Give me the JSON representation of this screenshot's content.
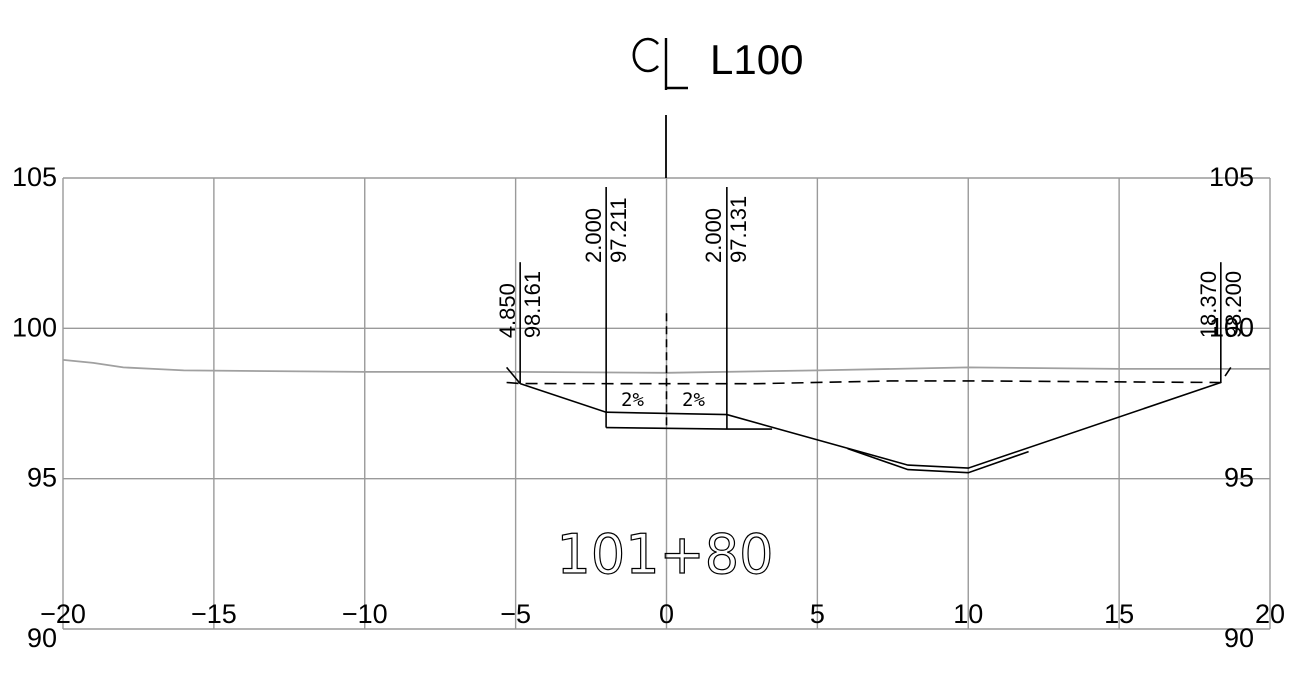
{
  "drawing": {
    "centerline_label": "L100",
    "station_label": "101+80",
    "x_axis": {
      "min": -20,
      "max": 20,
      "ticks": [
        -20,
        -15,
        -10,
        -5,
        0,
        5,
        10,
        15,
        20
      ]
    },
    "y_axis": {
      "min": 90,
      "max": 105,
      "ticks": [
        90,
        95,
        100,
        105
      ],
      "left_labels": [
        "90",
        "95",
        "100",
        "105"
      ],
      "right_labels": [
        "90",
        "95",
        "100",
        "105"
      ]
    },
    "x_tick_labels": [
      "−20",
      "−15",
      "−10",
      "−5",
      "0",
      "5",
      "10",
      "15",
      "20"
    ],
    "offset_annotations": [
      {
        "offset_label": "4.850",
        "elevation_label": "98.161",
        "offset": -4.85,
        "elevation": 98.161
      },
      {
        "offset_label": "2.000",
        "elevation_label": "97.211",
        "offset": -2.0,
        "elevation": 97.211
      },
      {
        "offset_label": "2.000",
        "elevation_label": "97.131",
        "offset": 2.0,
        "elevation": 97.131
      },
      {
        "offset_label": "18.370",
        "elevation_label": "98.200",
        "offset": 18.37,
        "elevation": 98.2
      }
    ],
    "slope_labels": [
      "2%",
      "2%"
    ],
    "existing_ground": [
      [
        -20,
        98.95
      ],
      [
        -19,
        98.85
      ],
      [
        -18,
        98.7
      ],
      [
        -17,
        98.65
      ],
      [
        -16,
        98.6
      ],
      [
        -10,
        98.55
      ],
      [
        -5,
        98.55
      ],
      [
        0,
        98.52
      ],
      [
        5,
        98.6
      ],
      [
        10,
        98.7
      ],
      [
        15,
        98.65
      ],
      [
        20,
        98.65
      ]
    ],
    "proposed_profile": [
      [
        -5.3,
        98.2
      ],
      [
        -4.85,
        98.161
      ],
      [
        3.0,
        98.16
      ],
      [
        7.5,
        98.25
      ],
      [
        10,
        98.25
      ],
      [
        18.37,
        98.2
      ],
      [
        18.7,
        98.7
      ]
    ],
    "subgrade_surface": [
      [
        -4.85,
        98.161
      ],
      [
        -2.0,
        97.211
      ],
      [
        2.0,
        97.131
      ],
      [
        8.0,
        95.45
      ],
      [
        10.0,
        95.35
      ],
      [
        18.37,
        98.2
      ]
    ],
    "pavement_bottom": [
      [
        -2.0,
        96.7
      ],
      [
        2.0,
        96.65
      ],
      [
        3.5,
        96.65
      ]
    ],
    "ditch_liner": [
      [
        6.0,
        96.0
      ],
      [
        8.0,
        95.3
      ],
      [
        10.0,
        95.2
      ],
      [
        12.0,
        95.9
      ]
    ],
    "colors": {
      "grid": "#9a9a9a",
      "ground": "#a0a0a0",
      "design": "#000000"
    }
  }
}
